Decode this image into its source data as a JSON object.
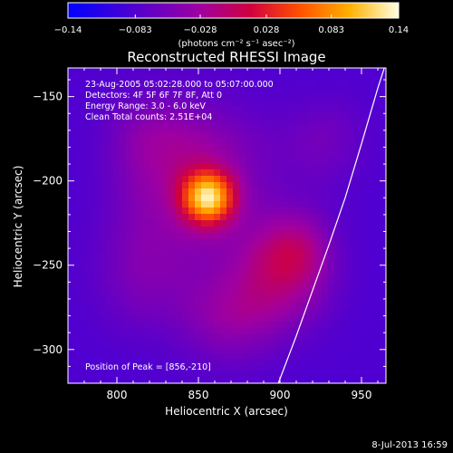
{
  "chart_data": {
    "type": "heatmap",
    "title": "Reconstructed RHESSI Image",
    "xlabel": "Heliocentric X (arcsec)",
    "ylabel": "Heliocentric Y (arcsec)",
    "xlim": [
      770,
      965
    ],
    "ylim": [
      -320,
      -133
    ],
    "x_ticks": [
      800,
      850,
      900,
      950
    ],
    "y_ticks": [
      -150,
      -200,
      -250,
      -300
    ],
    "colorbar": {
      "min": -0.14,
      "max": 0.14,
      "tick_values": [
        -0.14,
        -0.083,
        -0.028,
        0.028,
        0.083,
        0.14
      ],
      "tick_labels": [
        "-0.14",
        "-0.083",
        "-0.028",
        "0.028",
        "0.083",
        "0.14"
      ],
      "unit_label": "(photons cm⁻² s⁻¹ asec⁻²)"
    },
    "info_lines": [
      "23-Aug-2005 05:02:28.000 to 05:07:00.000",
      "Detectors: 4F 5F 6F 7F 8F, Att 0",
      "Energy Range: 3.0 - 6.0 keV",
      "Clean    Total counts: 2.51E+04"
    ],
    "peak_text": "Position of Peak = [856,-210]",
    "peak": {
      "x": 856,
      "y": -210,
      "value": 0.14
    },
    "limb_curve": [
      [
        899,
        -320
      ],
      [
        910,
        -292
      ],
      [
        920,
        -265
      ],
      [
        930,
        -238
      ],
      [
        940,
        -210
      ],
      [
        950,
        -178
      ],
      [
        960,
        -145
      ],
      [
        964,
        -133
      ]
    ],
    "sources": [
      {
        "x": 856,
        "y": -210,
        "amp": 0.17,
        "sigma": 11
      },
      {
        "x": 845,
        "y": -195,
        "amp": 0.055,
        "sigma": 32
      },
      {
        "x": 900,
        "y": -255,
        "amp": 0.06,
        "sigma": 22
      },
      {
        "x": 910,
        "y": -240,
        "amp": 0.04,
        "sigma": 15
      },
      {
        "x": 870,
        "y": -285,
        "amp": 0.045,
        "sigma": 22
      },
      {
        "x": 815,
        "y": -255,
        "amp": 0.03,
        "sigma": 25
      },
      {
        "x": 930,
        "y": -175,
        "amp": 0.025,
        "sigma": 20
      },
      {
        "x": 820,
        "y": -170,
        "amp": 0.02,
        "sigma": 20
      }
    ],
    "background": -0.085
  },
  "footer": {
    "timestamp": "8-Jul-2013 16:59"
  }
}
